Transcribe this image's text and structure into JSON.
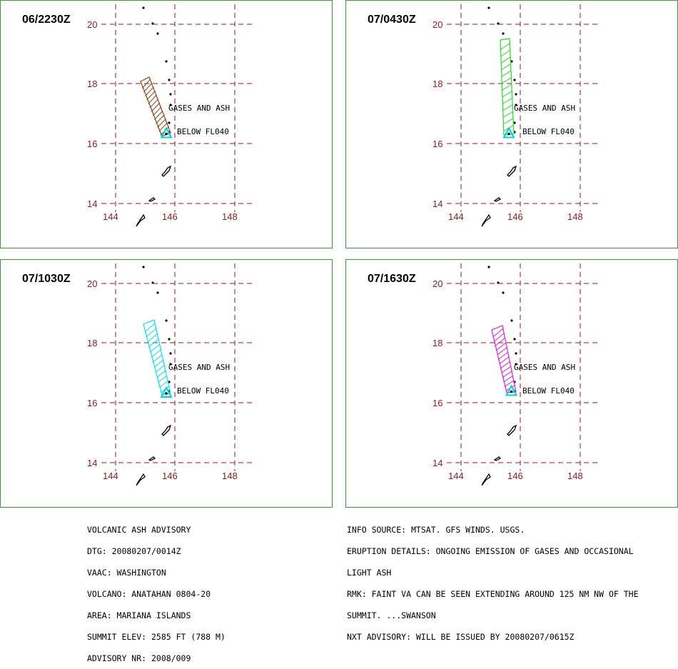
{
  "map": {
    "lat_labels": [
      "20",
      "18",
      "16",
      "14"
    ],
    "lon_labels": [
      "144",
      "146",
      "148"
    ],
    "annotation": [
      "GASES AND ASH",
      "BELOW FL040"
    ],
    "grid_color": "#8b1a1a",
    "volcano_marker_color": "#00d0e0"
  },
  "panels": [
    {
      "time": "06/2230Z",
      "plume_color": "#8b4513"
    },
    {
      "time": "07/0430Z",
      "plume_color": "#22dd22"
    },
    {
      "time": "07/1030Z",
      "plume_color": "#00e5ee"
    },
    {
      "time": "07/1630Z",
      "plume_color": "#dd22dd"
    }
  ],
  "advisory_left": [
    "VOLCANIC ASH ADVISORY",
    "DTG: 20080207/0014Z",
    "VAAC: WASHINGTON",
    "VOLCANO: ANATAHAN 0804-20",
    "AREA: MARIANA ISLANDS",
    "SUMMIT ELEV: 2585 FT (788 M)",
    "ADVISORY NR: 2008/009"
  ],
  "advisory_right": [
    "INFO SOURCE: MTSAT. GFS WINDS. USGS.",
    "ERUPTION DETAILS: ONGOING EMISSION OF GASES AND OCCASIONAL",
    "LIGHT ASH",
    "RMK: FAINT VA CAN BE SEEN EXTENDING AROUND 125 NM NW OF THE",
    "SUMMIT. ...SWANSON",
    "NXT ADVISORY: WILL BE ISSUED BY 20080207/0615Z"
  ]
}
